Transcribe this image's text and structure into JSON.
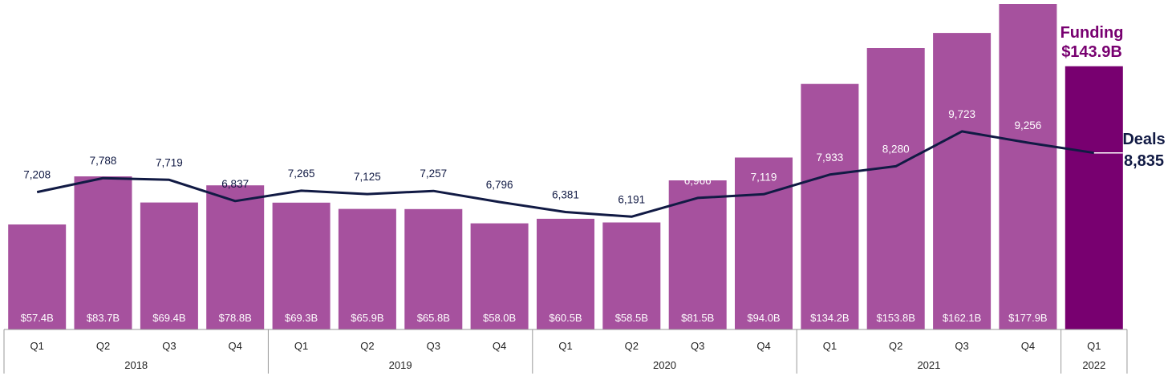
{
  "chart_data": {
    "type": "bar",
    "categories": [
      "Q1",
      "Q2",
      "Q3",
      "Q4",
      "Q1",
      "Q2",
      "Q3",
      "Q4",
      "Q1",
      "Q2",
      "Q3",
      "Q4",
      "Q1",
      "Q2",
      "Q3",
      "Q4",
      "Q1"
    ],
    "years": [
      {
        "label": "2018",
        "count": 4
      },
      {
        "label": "2019",
        "count": 4
      },
      {
        "label": "2020",
        "count": 4
      },
      {
        "label": "2021",
        "count": 4
      },
      {
        "label": "2022",
        "count": 1
      }
    ],
    "series": [
      {
        "name": "Funding",
        "type": "bar",
        "values": [
          57.4,
          83.7,
          69.4,
          78.8,
          69.3,
          65.9,
          65.8,
          58.0,
          60.5,
          58.5,
          81.5,
          94.0,
          134.2,
          153.8,
          162.1,
          177.9,
          143.9
        ],
        "labels": [
          "$57.4B",
          "$83.7B",
          "$69.4B",
          "$78.8B",
          "$69.3B",
          "$65.9B",
          "$65.8B",
          "$58.0B",
          "$60.5B",
          "$58.5B",
          "$81.5B",
          "$94.0B",
          "$134.2B",
          "$153.8B",
          "$162.1B",
          "$177.9B",
          ""
        ]
      },
      {
        "name": "Deals",
        "type": "line",
        "values": [
          7208,
          7788,
          7719,
          6837,
          7265,
          7125,
          7257,
          6796,
          6381,
          6191,
          6966,
          7119,
          7933,
          8280,
          9723,
          9256,
          8835
        ],
        "labels": [
          "7,208",
          "7,788",
          "7,719",
          "6,837",
          "7,265",
          "7,125",
          "7,257",
          "6,796",
          "6,381",
          "6,191",
          "6,966",
          "7,119",
          "7,933",
          "8,280",
          "9,723",
          "9,256",
          ""
        ]
      }
    ],
    "callouts": {
      "funding_title": "Funding",
      "funding_value": "$143.9B",
      "deals_title": "Deals",
      "deals_value": "8,835"
    },
    "colors": {
      "bar": "#a6519e",
      "bar_highlight": "#780070",
      "line": "#111a44",
      "funding_text": "#780070",
      "deals_text": "#111a44",
      "axis": "#999999"
    }
  }
}
